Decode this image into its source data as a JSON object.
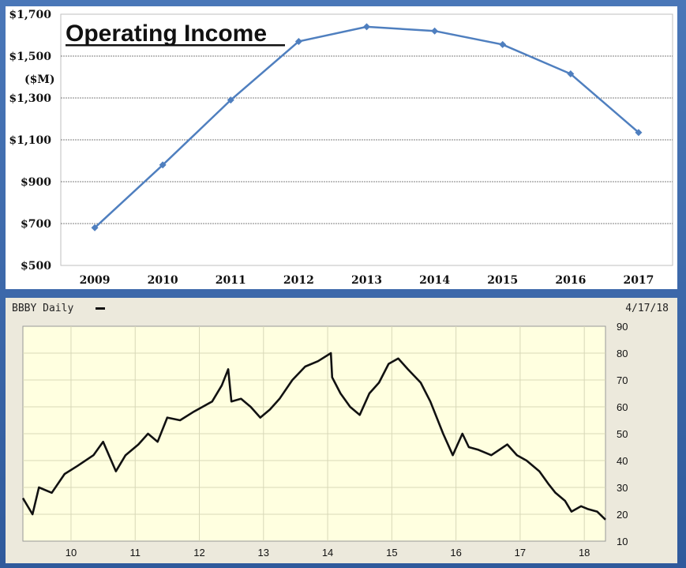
{
  "chart_data": [
    {
      "type": "line",
      "title": "Operating Income",
      "ylabel": "($M)",
      "x": [
        "2009",
        "2010",
        "2011",
        "2012",
        "2013",
        "2014",
        "2015",
        "2016",
        "2017"
      ],
      "series": [
        {
          "values": [
            680,
            980,
            1290,
            1570,
            1640,
            1620,
            1555,
            1415,
            1135
          ]
        }
      ],
      "ylim": [
        500,
        1700
      ],
      "yticks": [
        500,
        700,
        900,
        1100,
        1300,
        1500,
        1700
      ],
      "ytick_labels": [
        "$500",
        "$700",
        "$900",
        "$1,100",
        "$1,300",
        "$1,500",
        "$1,700"
      ],
      "grid": true,
      "color": "#4f7fbf"
    },
    {
      "type": "line",
      "title": "BBBY Daily",
      "date": "4/17/18",
      "xlim": [
        2009.25,
        2018.33
      ],
      "xticks": [
        2010,
        2011,
        2012,
        2013,
        2014,
        2015,
        2016,
        2017,
        2018
      ],
      "xtick_labels": [
        "10",
        "11",
        "12",
        "13",
        "14",
        "15",
        "16",
        "17",
        "18"
      ],
      "ylim": [
        10,
        90
      ],
      "yticks": [
        10,
        20,
        30,
        40,
        50,
        60,
        70,
        80,
        90
      ],
      "ytick_labels": [
        "10",
        "20",
        "30",
        "40",
        "50",
        "60",
        "70",
        "80",
        "90"
      ],
      "grid": true,
      "color": "#111111",
      "series": [
        {
          "x": [
            2009.25,
            2009.4,
            2009.5,
            2009.7,
            2009.9,
            2010.1,
            2010.35,
            2010.5,
            2010.7,
            2010.85,
            2011.05,
            2011.2,
            2011.35,
            2011.5,
            2011.7,
            2011.9,
            2012.05,
            2012.2,
            2012.35,
            2012.45,
            2012.5,
            2012.65,
            2012.8,
            2012.95,
            2013.1,
            2013.25,
            2013.45,
            2013.65,
            2013.85,
            2014.05,
            2014.07,
            2014.2,
            2014.35,
            2014.5,
            2014.65,
            2014.8,
            2014.95,
            2015.1,
            2015.25,
            2015.45,
            2015.6,
            2015.8,
            2015.95,
            2016.1,
            2016.2,
            2016.35,
            2016.55,
            2016.8,
            2016.95,
            2017.1,
            2017.3,
            2017.45,
            2017.55,
            2017.7,
            2017.8,
            2017.95,
            2018.05,
            2018.2,
            2018.33
          ],
          "values": [
            26,
            20,
            30,
            28,
            35,
            38,
            42,
            47,
            36,
            42,
            46,
            50,
            47,
            56,
            55,
            58,
            60,
            62,
            68,
            74,
            62,
            63,
            60,
            56,
            59,
            63,
            70,
            75,
            77,
            80,
            71,
            65,
            60,
            57,
            65,
            69,
            76,
            78,
            74,
            69,
            62,
            50,
            42,
            50,
            45,
            44,
            42,
            46,
            42,
            40,
            36,
            31,
            28,
            25,
            21,
            23,
            22,
            21,
            18
          ]
        }
      ]
    }
  ]
}
